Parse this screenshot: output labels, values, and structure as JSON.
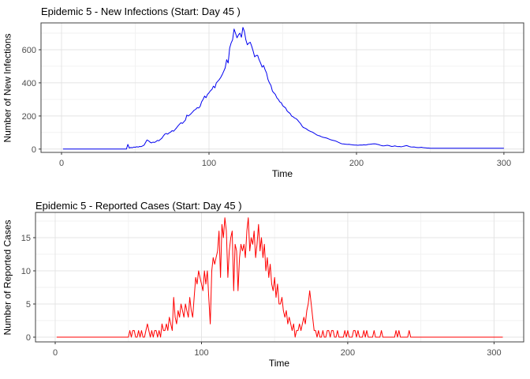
{
  "page": {
    "background": "#FFFFFF"
  },
  "style": {
    "grid_major": "#E4E4E4",
    "grid_minor": "#F2F2F2",
    "panel_border": "#404040",
    "axis_color": "#333333",
    "tick_label_color": "#4D4D4D",
    "title_color": "#000000",
    "line_blue": "#0000F0",
    "line_red": "#FF0000"
  },
  "chart_data": [
    {
      "type": "line",
      "title": "Epidemic 5 - New Infections (Start: Day 45 )",
      "xlabel": "Time",
      "ylabel": "Number of New Infections",
      "line_color": "#0000F0",
      "legend": "none",
      "grid": "on",
      "x_ticks": [
        0,
        100,
        200,
        300
      ],
      "x_minor_ticks": [
        50,
        150,
        250
      ],
      "y_ticks": [
        0,
        200,
        400,
        600
      ],
      "y_minor_ticks": [
        100,
        300,
        500,
        700
      ],
      "xlim": [
        -13.9,
        313.4
      ],
      "ylim": [
        -20,
        762
      ],
      "x_start": 1,
      "x_step": 1,
      "peak": {
        "day": 123,
        "value": 735
      },
      "values": [
        0,
        0,
        0,
        0,
        0,
        0,
        0,
        0,
        0,
        0,
        0,
        0,
        0,
        0,
        0,
        0,
        0,
        0,
        0,
        0,
        0,
        0,
        0,
        0,
        0,
        0,
        0,
        0,
        0,
        0,
        0,
        0,
        0,
        0,
        0,
        0,
        0,
        0,
        0,
        0,
        0,
        0,
        0,
        0,
        28,
        6,
        10,
        8,
        12,
        11,
        14,
        12,
        16,
        15,
        19,
        24,
        40,
        55,
        50,
        42,
        37,
        42,
        40,
        45,
        52,
        50,
        58,
        65,
        78,
        90,
        94,
        90,
        98,
        103,
        111,
        108,
        118,
        128,
        140,
        150,
        159,
        155,
        165,
        175,
        205,
        200,
        207,
        215,
        225,
        235,
        240,
        250,
        248,
        258,
        285,
        300,
        320,
        310,
        330,
        340,
        352,
        360,
        380,
        370,
        400,
        410,
        420,
        433,
        450,
        470,
        490,
        540,
        520,
        610,
        640,
        660,
        725,
        700,
        672,
        690,
        700,
        675,
        735,
        710,
        660,
        630,
        640,
        645,
        620,
        590,
        557,
        565,
        566,
        540,
        520,
        495,
        505,
        480,
        460,
        420,
        400,
        385,
        350,
        340,
        330,
        310,
        300,
        285,
        280,
        262,
        255,
        248,
        230,
        222,
        215,
        200,
        195,
        188,
        184,
        176,
        165,
        155,
        140,
        130,
        127,
        122,
        115,
        110,
        106,
        103,
        98,
        92,
        86,
        82,
        80,
        76,
        72,
        70,
        68,
        66,
        62,
        58,
        55,
        53,
        51,
        48,
        44,
        40,
        36,
        32,
        31,
        30,
        29,
        28,
        29,
        27,
        26,
        25,
        24,
        24,
        23,
        24,
        25,
        24,
        26,
        25,
        26,
        28,
        29,
        30,
        31,
        32,
        31,
        29,
        27,
        24,
        21,
        19,
        20,
        22,
        23,
        21,
        18,
        16,
        17,
        19,
        17,
        15,
        16,
        14,
        15,
        17,
        19,
        21,
        18,
        15,
        13,
        12,
        13,
        11,
        10,
        9,
        10,
        11,
        9,
        8,
        7,
        6,
        6,
        5,
        5,
        5,
        5,
        5,
        5,
        5,
        5,
        5,
        5,
        5,
        5,
        5,
        5,
        5,
        5,
        5,
        5,
        5,
        5,
        5,
        5,
        5,
        5,
        5,
        5,
        5,
        5,
        5,
        5,
        5,
        5,
        5,
        5,
        5,
        5,
        5,
        5,
        5,
        5,
        5,
        5,
        5,
        5,
        5,
        5,
        5,
        5,
        5,
        5,
        5
      ]
    },
    {
      "type": "line",
      "title": "Epidemic 5 - Reported Cases (Start: Day 45 )",
      "xlabel": "Time",
      "ylabel": "Number of Reported Cases",
      "line_color": "#FF0000",
      "legend": "none",
      "grid": "on",
      "x_ticks": [
        0,
        100,
        200,
        300
      ],
      "x_minor_ticks": [
        50,
        150,
        250
      ],
      "y_ticks": [
        0,
        5,
        10,
        15
      ],
      "y_minor_ticks": [
        2.5,
        7.5,
        12.5,
        17.5
      ],
      "xlim": [
        -13.5,
        320.3
      ],
      "ylim": [
        -0.71,
        18.81
      ],
      "x_start": 1,
      "x_step": 1,
      "peak": {
        "day": 132,
        "value": 18
      },
      "values": [
        0,
        0,
        0,
        0,
        0,
        0,
        0,
        0,
        0,
        0,
        0,
        0,
        0,
        0,
        0,
        0,
        0,
        0,
        0,
        0,
        0,
        0,
        0,
        0,
        0,
        0,
        0,
        0,
        0,
        0,
        0,
        0,
        0,
        0,
        0,
        0,
        0,
        0,
        0,
        0,
        0,
        0,
        0,
        0,
        0,
        0,
        0,
        0,
        0,
        0,
        1,
        0,
        1,
        1,
        0,
        0,
        1,
        0,
        1,
        0,
        0,
        1,
        2,
        1,
        0,
        1,
        0,
        1,
        1,
        0,
        1,
        0,
        2,
        1,
        1,
        2,
        1,
        3,
        2,
        1,
        6,
        3,
        2,
        4,
        3,
        5,
        4,
        3,
        5,
        4,
        3,
        6,
        4,
        3,
        6,
        9,
        8,
        10,
        9,
        8,
        7,
        10,
        8,
        10,
        6,
        2,
        10,
        12,
        11,
        12,
        13,
        16,
        9,
        17,
        15,
        18,
        16,
        9,
        13,
        15,
        16,
        7,
        14,
        13,
        7,
        12,
        14,
        13,
        14,
        12,
        16,
        18,
        13,
        15,
        14,
        16,
        12,
        14,
        17,
        13,
        15,
        12,
        14,
        10,
        12,
        9,
        11,
        8,
        7,
        9,
        6,
        8,
        5,
        5,
        6,
        4,
        3,
        4,
        2,
        3,
        2,
        1,
        2,
        0,
        1,
        1,
        2,
        1,
        2,
        3,
        2,
        4,
        5,
        7,
        5,
        3,
        1,
        1,
        0,
        1,
        0,
        0,
        1,
        0,
        0,
        1,
        1,
        0,
        1,
        1,
        0,
        0,
        1,
        0,
        0,
        0,
        0,
        1,
        0,
        1,
        0,
        0,
        0,
        1,
        1,
        0,
        1,
        0,
        0,
        0,
        1,
        0,
        1,
        0,
        0,
        0,
        0,
        1,
        0,
        0,
        0,
        0,
        1,
        0,
        0,
        0,
        0,
        0,
        0,
        0,
        0,
        0,
        1,
        0,
        1,
        0,
        0,
        0,
        0,
        0,
        0,
        1,
        0,
        0,
        0,
        0,
        0,
        0,
        0,
        0,
        0,
        0,
        0,
        0,
        0,
        0,
        0,
        0,
        0,
        0,
        0,
        0,
        0,
        0,
        0,
        0,
        0,
        0,
        0,
        0,
        0,
        0,
        0,
        0,
        0,
        0,
        0,
        0,
        0,
        0,
        0,
        0,
        0,
        0,
        0,
        0,
        0,
        0,
        0,
        0,
        0,
        0,
        0,
        0,
        0,
        0,
        0,
        0,
        0,
        0,
        0,
        0,
        0,
        0,
        0,
        0
      ]
    }
  ]
}
